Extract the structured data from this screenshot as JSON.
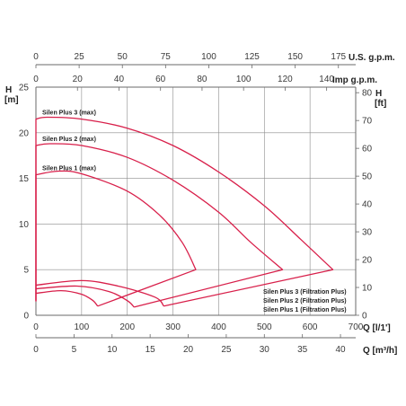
{
  "chart_data": {
    "type": "line",
    "colors": {
      "curve": "#d81f4a",
      "grid": "#8c8c8c",
      "text": "#3a3a3a"
    },
    "grid": true,
    "axes": {
      "bottom": {
        "label": "Q [l/1']",
        "ticks": [
          "0",
          "100",
          "200",
          "300",
          "400",
          "500",
          "600",
          "700"
        ],
        "range": [
          0,
          700
        ]
      },
      "bottom2": {
        "label": "Q [m³/h]",
        "ticks": [
          "0",
          "5",
          "10",
          "15",
          "20",
          "25",
          "30",
          "35",
          "40"
        ],
        "range": [
          0,
          42
        ]
      },
      "top": {
        "label": "U.S. g.p.m.",
        "ticks": [
          "0",
          "25",
          "50",
          "75",
          "100",
          "125",
          "150",
          "175"
        ],
        "range": [
          0,
          185
        ]
      },
      "top2": {
        "label": "Imp g.p.m.",
        "ticks": [
          "0",
          "20",
          "40",
          "60",
          "80",
          "100",
          "120",
          "140"
        ],
        "range": [
          0,
          154
        ]
      },
      "left": {
        "label_top": "H",
        "label_unit": "[m]",
        "ticks": [
          "0",
          "5",
          "10",
          "15",
          "20",
          "25"
        ],
        "range": [
          0,
          25
        ]
      },
      "right": {
        "label_top": "H",
        "label_unit": "[ft]",
        "ticks": [
          "0",
          "10",
          "20",
          "30",
          "40",
          "50",
          "60",
          "70",
          "80"
        ],
        "range": [
          0,
          82
        ]
      }
    },
    "series": [
      {
        "name": "Silen Plus 3 (max)",
        "x_unit": "l/min",
        "upper": [
          [
            0,
            21.5
          ],
          [
            25,
            21.7
          ],
          [
            100,
            21.5
          ],
          [
            200,
            20.5
          ],
          [
            300,
            18.6
          ],
          [
            400,
            15.7
          ],
          [
            500,
            12
          ],
          [
            580,
            8.3
          ],
          [
            650,
            5
          ]
        ],
        "lower_end": [
          280,
          1
        ]
      },
      {
        "name": "Silen Plus 2 (max)",
        "x_unit": "l/min",
        "upper": [
          [
            0,
            18.6
          ],
          [
            30,
            18.8
          ],
          [
            100,
            18.6
          ],
          [
            200,
            17.3
          ],
          [
            300,
            14.8
          ],
          [
            400,
            11.3
          ],
          [
            470,
            8
          ],
          [
            540,
            5
          ]
        ],
        "lower_end": [
          215,
          0.9
        ]
      },
      {
        "name": "Silen Plus 1 (max)",
        "x_unit": "l/min",
        "upper": [
          [
            0,
            15.4
          ],
          [
            50,
            15.8
          ],
          [
            100,
            15.5
          ],
          [
            200,
            13.6
          ],
          [
            270,
            11
          ],
          [
            320,
            8
          ],
          [
            350,
            5
          ]
        ],
        "lower_end": [
          135,
          1
        ]
      },
      {
        "name": "Silen Plus 3 (Filtration Plus)",
        "x_unit": "l/min",
        "points": [
          [
            0,
            3.3
          ],
          [
            100,
            3.8
          ],
          [
            180,
            3.2
          ],
          [
            260,
            2
          ],
          [
            280,
            1
          ]
        ]
      },
      {
        "name": "Silen Plus 2 (Filtration Plus)",
        "x_unit": "l/min",
        "points": [
          [
            0,
            2.9
          ],
          [
            90,
            3.2
          ],
          [
            160,
            2.6
          ],
          [
            200,
            1.6
          ],
          [
            215,
            0.9
          ]
        ]
      },
      {
        "name": "Silen Plus 1 (Filtration Plus)",
        "x_unit": "l/min",
        "points": [
          [
            0,
            2.4
          ],
          [
            55,
            2.7
          ],
          [
            100,
            2.3
          ],
          [
            125,
            1.6
          ],
          [
            135,
            1
          ]
        ]
      }
    ]
  }
}
